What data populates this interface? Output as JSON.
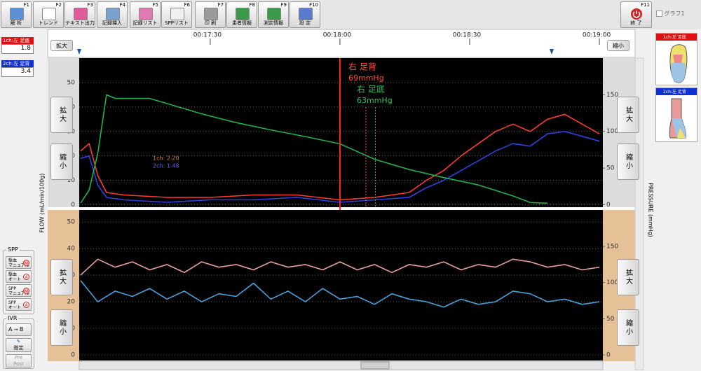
{
  "toolbar": [
    {
      "key": "F1",
      "label": "解 析"
    },
    {
      "key": "F2",
      "label": "トレンド"
    },
    {
      "key": "F3",
      "label": "テキスト出力"
    },
    {
      "key": "F4",
      "label": "記録挿入"
    },
    {
      "key": "F5",
      "label": "記録リスト"
    },
    {
      "key": "F6",
      "label": "SPPリスト"
    },
    {
      "key": "F7",
      "label": "印 刷"
    },
    {
      "key": "F8",
      "label": "患者情報"
    },
    {
      "key": "F9",
      "label": "測定情報"
    },
    {
      "key": "F10",
      "label": "設 定"
    }
  ],
  "exit": {
    "key": "F11",
    "label": "終 了"
  },
  "graph_checkbox": "グラフ1",
  "channels": [
    {
      "label": "1ch:左 足底",
      "value": 1.8
    },
    {
      "label": "2ch:左 足背",
      "value": 3.4
    }
  ],
  "zoom": {
    "in": "拡大",
    "out": "縮小"
  },
  "axis_titles": {
    "left": "FLOW (mL/min/100g)",
    "right": "PRESSURE (mmHg)"
  },
  "spp": {
    "title": "SPP",
    "buttons": [
      {
        "line1": "駆血",
        "line2": "マニュアル",
        "badge": "M"
      },
      {
        "line1": "駆血",
        "line2": "オート",
        "badge": "A"
      },
      {
        "line1": "SPP",
        "line2": "マニュアル",
        "badge": "M"
      },
      {
        "line1": "SPP",
        "line2": "オート",
        "badge": "A"
      }
    ]
  },
  "ivr": {
    "title": "IVR",
    "from": "A",
    "to": "B",
    "set": "指定",
    "pre": "Pre",
    "post": "Post"
  },
  "charts": [
    {
      "type": "line",
      "xlim": [
        1019.7,
        1140.8
      ],
      "xticks": [
        {
          "value": 1050,
          "label": "00:17:30"
        },
        {
          "value": 1080,
          "label": "00:18:00"
        },
        {
          "value": 1110,
          "label": "00:18:30"
        },
        {
          "value": 1140,
          "label": "00:19:00"
        }
      ],
      "ylim": [
        -1,
        60
      ],
      "yticks": [
        0,
        10,
        20,
        30,
        40,
        50
      ],
      "y2lim": [
        -3.4,
        200
      ],
      "y2ticks": [
        0,
        50,
        100,
        150
      ],
      "grid": true,
      "cursor": 1080,
      "markers": [
        {
          "x": 1086,
          "color": "#ff4a3a"
        },
        {
          "x": 1088.2,
          "color": "#2fbf5a"
        }
      ],
      "annotations": [
        {
          "site": "右 足背",
          "value": "69mmHg",
          "color": "#ff4a3a"
        },
        {
          "site": "右 足底",
          "value": "63mmHg",
          "color": "#2fbf5a"
        }
      ],
      "legend": [
        {
          "text": "1ch: 2.20",
          "color": "#e07a40"
        },
        {
          "text": "2ch: 1.48",
          "color": "#6a5cf0"
        }
      ],
      "series": [
        {
          "name": "1ch",
          "color": "#ff3b2f",
          "x": [
            1020,
            1022,
            1024,
            1026,
            1030,
            1040,
            1050,
            1060,
            1070,
            1080,
            1088,
            1096,
            1100,
            1104,
            1108,
            1112,
            1116,
            1120,
            1124,
            1128,
            1132,
            1136,
            1140
          ],
          "values": [
            22,
            25,
            12,
            5,
            4,
            3,
            3,
            4,
            4,
            2,
            3,
            5,
            10,
            14,
            20,
            25,
            30,
            33,
            30,
            35,
            37,
            33,
            29
          ]
        },
        {
          "name": "2ch",
          "color": "#3040e0",
          "x": [
            1020,
            1022,
            1024,
            1026,
            1030,
            1040,
            1050,
            1060,
            1070,
            1080,
            1088,
            1096,
            1100,
            1104,
            1108,
            1112,
            1116,
            1120,
            1124,
            1128,
            1132,
            1136,
            1140
          ],
          "values": [
            19,
            20,
            8,
            3,
            2,
            1,
            2,
            2,
            3,
            1,
            2,
            3,
            7,
            10,
            14,
            18,
            22,
            25,
            24,
            29,
            30,
            28,
            26
          ]
        },
        {
          "name": "pressure",
          "color": "#22b04a",
          "axis": "y2",
          "x": [
            1020,
            1022,
            1024,
            1026,
            1028,
            1032,
            1036,
            1040,
            1048,
            1056,
            1064,
            1072,
            1080,
            1088,
            1096,
            1104,
            1112,
            1120,
            1124,
            1128
          ],
          "values": [
            2,
            20,
            70,
            150,
            145,
            145,
            145,
            138,
            124,
            112,
            102,
            93,
            83,
            62,
            48,
            37,
            27,
            12,
            3,
            2
          ]
        }
      ]
    },
    {
      "type": "line",
      "xlim": [
        1019.7,
        1140.8
      ],
      "ylim": [
        -2.1,
        54.5
      ],
      "yticks": [
        0,
        10,
        20,
        30,
        40,
        50
      ],
      "y2lim": [
        -7.7,
        200.4
      ],
      "y2ticks": [
        0,
        50,
        100,
        150
      ],
      "grid": true,
      "series": [
        {
          "name": "1ch",
          "color": "#e8a0a0",
          "x": [
            1020,
            1024,
            1028,
            1032,
            1036,
            1040,
            1044,
            1048,
            1052,
            1056,
            1060,
            1064,
            1068,
            1072,
            1076,
            1080,
            1084,
            1088,
            1092,
            1096,
            1100,
            1104,
            1108,
            1112,
            1116,
            1120,
            1124,
            1128,
            1132,
            1136,
            1140
          ],
          "values": [
            30,
            36,
            33,
            35,
            32,
            34,
            31,
            35,
            33,
            34,
            32,
            35,
            33,
            34,
            32,
            35,
            32,
            34,
            31,
            34,
            33,
            35,
            32,
            34,
            33,
            36,
            35,
            33,
            34,
            32,
            33
          ]
        },
        {
          "name": "2ch",
          "color": "#4aa0d8",
          "x": [
            1020,
            1024,
            1028,
            1032,
            1036,
            1040,
            1044,
            1048,
            1052,
            1056,
            1060,
            1064,
            1068,
            1072,
            1076,
            1080,
            1084,
            1088,
            1092,
            1096,
            1100,
            1104,
            1108,
            1112,
            1116,
            1120,
            1124,
            1128,
            1132,
            1136,
            1140
          ],
          "values": [
            28,
            20,
            24,
            22,
            25,
            21,
            24,
            20,
            23,
            22,
            27,
            21,
            24,
            20,
            25,
            21,
            22,
            19,
            23,
            21,
            20,
            18,
            21,
            19,
            20,
            24,
            23,
            20,
            21,
            19,
            20
          ]
        }
      ]
    }
  ]
}
